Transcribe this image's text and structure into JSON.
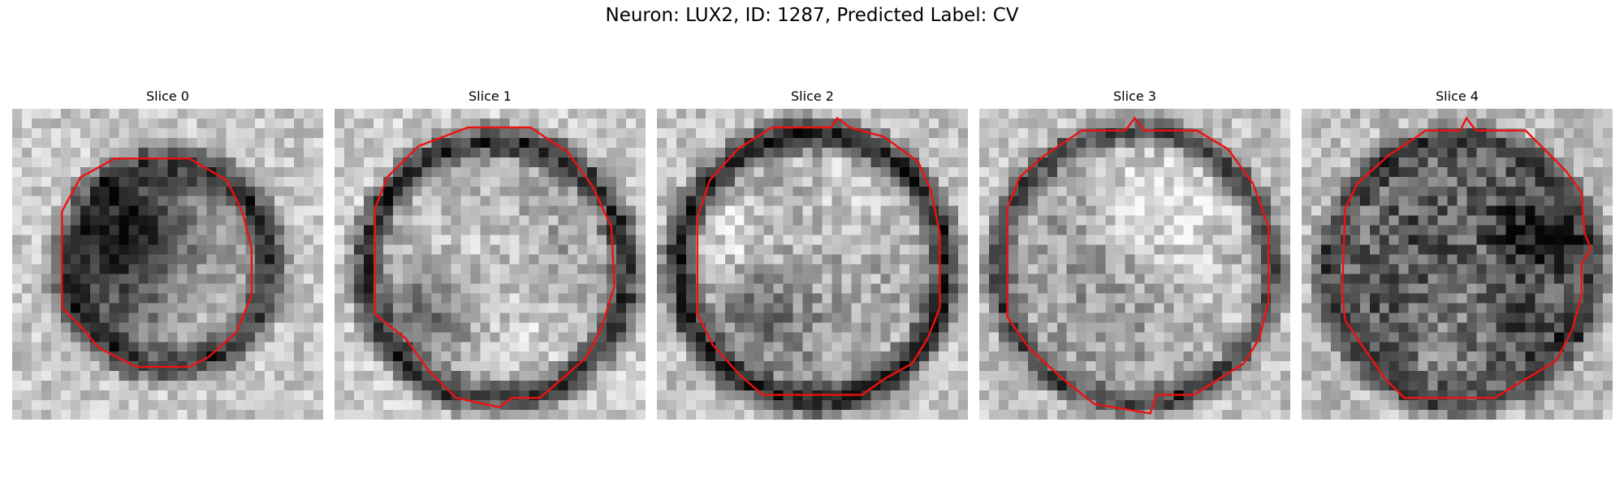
{
  "figure": {
    "title": "Neuron: LUX2, ID: 1287, Predicted Label: CV"
  },
  "panels": [
    {
      "title": "Slice 0"
    },
    {
      "title": "Slice 1"
    },
    {
      "title": "Slice 2"
    },
    {
      "title": "Slice 3"
    },
    {
      "title": "Slice 4"
    }
  ],
  "colors": {
    "contour": "#ee1111"
  }
}
